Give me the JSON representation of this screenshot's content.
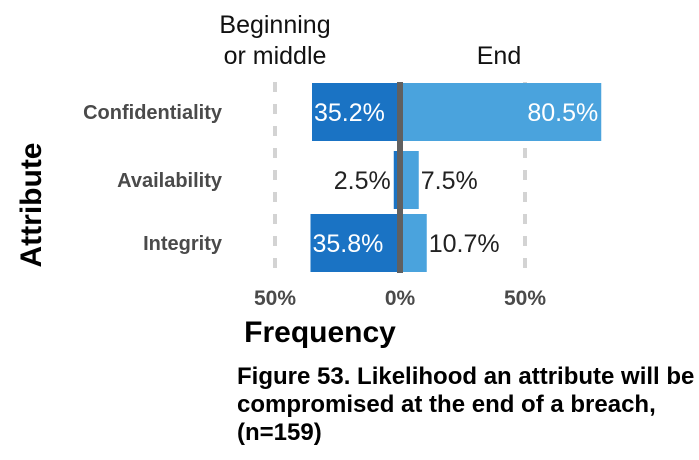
{
  "chart_data": {
    "type": "bar",
    "orientation": "horizontal-diverging",
    "categories": [
      "Confidentiality",
      "Availability",
      "Integrity"
    ],
    "series": [
      {
        "name": "Beginning\nor middle",
        "values": [
          35.2,
          2.5,
          35.8
        ],
        "labels": [
          "35.2%",
          "2.5%",
          "35.8%"
        ],
        "color": "#1a73c4"
      },
      {
        "name": "End",
        "values": [
          80.5,
          7.5,
          10.7
        ],
        "labels": [
          "80.5%",
          "7.5%",
          "10.7%"
        ],
        "color": "#4aa3dd"
      }
    ],
    "xlabel": "Frequency",
    "ylabel": "Attribute",
    "xlim": [
      -50,
      50
    ],
    "xticks": [
      -50,
      0,
      50
    ],
    "xtick_labels": [
      "50%",
      "0%",
      "50%"
    ],
    "gridlines": "dashed at ±50%",
    "zero_line_color": "#606060"
  },
  "caption": "Figure 53.  Likelihood an attribute will be compromised at the end of a breach, (n=159)"
}
